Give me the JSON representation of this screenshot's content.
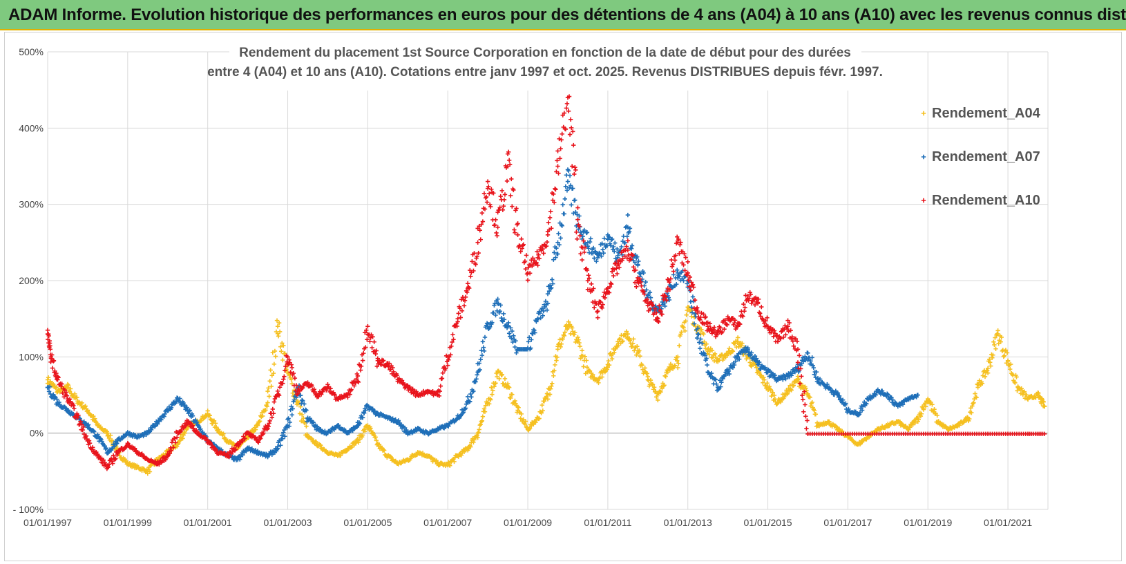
{
  "banner": {
    "title": "ADAM Informe. Evolution historique des performances en euros pour des détentions de 4 ans (A04) à 10 ans (A10) avec les revenus connus distribués"
  },
  "colors": {
    "banner_bg": "#7fc97f",
    "A04": "#f5c021",
    "A07": "#1f6fb8",
    "A10": "#e8141c",
    "grid": "#d9d9d9"
  },
  "chart_data": {
    "type": "scatter",
    "title_lines": [
      "Rendement du placement 1st Source Corporation en fonction de la date de début pour des durées",
      "entre 4 (A04) et 10 ans (A10). Cotations entre janv 1997 et oct. 2025. Revenus DISTRIBUES depuis févr. 1997."
    ],
    "xlabel": "",
    "ylabel": "",
    "x_range": [
      "1997-01-01",
      "2022-01-01"
    ],
    "ylim": [
      -100,
      500
    ],
    "x_ticks": [
      "01/01/1997",
      "01/01/1999",
      "01/01/2001",
      "01/01/2003",
      "01/01/2005",
      "01/01/2007",
      "01/01/2009",
      "01/01/2011",
      "01/01/2013",
      "01/01/2015",
      "01/01/2017",
      "01/01/2019",
      "01/01/2021"
    ],
    "y_ticks": [
      "- 100%",
      "0%",
      "100%",
      "200%",
      "300%",
      "400%",
      "500%"
    ],
    "y_tick_values": [
      -100,
      0,
      100,
      200,
      300,
      400,
      500
    ],
    "grid": true,
    "legend_position": "right",
    "marker": "+",
    "series": [
      {
        "name": "Rendement_A04",
        "points": [
          [
            "1997-01",
            70
          ],
          [
            "1997-04",
            55
          ],
          [
            "1997-07",
            60
          ],
          [
            "1997-10",
            42
          ],
          [
            "1998-01",
            30
          ],
          [
            "1998-04",
            10
          ],
          [
            "1998-07",
            0
          ],
          [
            "1998-10",
            -25
          ],
          [
            "1999-01",
            -40
          ],
          [
            "1999-04",
            -45
          ],
          [
            "1999-07",
            -50
          ],
          [
            "1999-10",
            -35
          ],
          [
            "2000-01",
            -25
          ],
          [
            "2000-04",
            -15
          ],
          [
            "2000-07",
            10
          ],
          [
            "2000-10",
            15
          ],
          [
            "2001-01",
            25
          ],
          [
            "2001-04",
            5
          ],
          [
            "2001-07",
            -10
          ],
          [
            "2001-10",
            -20
          ],
          [
            "2002-01",
            -5
          ],
          [
            "2002-04",
            10
          ],
          [
            "2002-07",
            40
          ],
          [
            "2002-10",
            140
          ],
          [
            "2003-01",
            80
          ],
          [
            "2003-04",
            40
          ],
          [
            "2003-07",
            -5
          ],
          [
            "2003-10",
            -15
          ],
          [
            "2004-01",
            -25
          ],
          [
            "2004-04",
            -30
          ],
          [
            "2004-07",
            -20
          ],
          [
            "2004-10",
            -10
          ],
          [
            "2005-01",
            10
          ],
          [
            "2005-04",
            -15
          ],
          [
            "2005-07",
            -30
          ],
          [
            "2005-10",
            -40
          ],
          [
            "2006-01",
            -35
          ],
          [
            "2006-04",
            -25
          ],
          [
            "2006-07",
            -30
          ],
          [
            "2006-10",
            -40
          ],
          [
            "2007-01",
            -42
          ],
          [
            "2007-04",
            -30
          ],
          [
            "2007-07",
            -20
          ],
          [
            "2007-10",
            0
          ],
          [
            "2008-01",
            40
          ],
          [
            "2008-04",
            80
          ],
          [
            "2008-07",
            60
          ],
          [
            "2008-10",
            30
          ],
          [
            "2009-01",
            5
          ],
          [
            "2009-04",
            20
          ],
          [
            "2009-07",
            50
          ],
          [
            "2009-10",
            110
          ],
          [
            "2010-01",
            140
          ],
          [
            "2010-04",
            120
          ],
          [
            "2010-07",
            80
          ],
          [
            "2010-10",
            70
          ],
          [
            "2011-01",
            90
          ],
          [
            "2011-04",
            120
          ],
          [
            "2011-07",
            130
          ],
          [
            "2011-10",
            105
          ],
          [
            "2012-01",
            70
          ],
          [
            "2012-04",
            50
          ],
          [
            "2012-07",
            80
          ],
          [
            "2012-10",
            100
          ],
          [
            "2013-01",
            165
          ],
          [
            "2013-04",
            140
          ],
          [
            "2013-07",
            110
          ],
          [
            "2013-10",
            95
          ],
          [
            "2014-01",
            105
          ],
          [
            "2014-04",
            120
          ],
          [
            "2014-07",
            100
          ],
          [
            "2014-10",
            80
          ],
          [
            "2015-01",
            60
          ],
          [
            "2015-04",
            40
          ],
          [
            "2015-07",
            55
          ],
          [
            "2015-10",
            70
          ],
          [
            "2016-01",
            50
          ],
          [
            "2016-04",
            10
          ],
          [
            "2016-07",
            15
          ],
          [
            "2016-10",
            5
          ],
          [
            "2017-01",
            -5
          ],
          [
            "2017-04",
            -15
          ],
          [
            "2017-07",
            -5
          ],
          [
            "2017-10",
            5
          ],
          [
            "2018-01",
            10
          ],
          [
            "2018-04",
            15
          ],
          [
            "2018-07",
            5
          ],
          [
            "2018-10",
            20
          ],
          [
            "2019-01",
            45
          ],
          [
            "2019-04",
            15
          ],
          [
            "2019-07",
            5
          ],
          [
            "2019-10",
            10
          ],
          [
            "2020-01",
            20
          ],
          [
            "2020-04",
            60
          ],
          [
            "2020-07",
            85
          ],
          [
            "2020-10",
            130
          ],
          [
            "2021-01",
            95
          ],
          [
            "2021-04",
            60
          ],
          [
            "2021-07",
            45
          ],
          [
            "2021-10",
            50
          ],
          [
            "2021-12",
            35
          ]
        ]
      },
      {
        "name": "Rendement_A07",
        "points": [
          [
            "1997-01",
            60
          ],
          [
            "1997-04",
            40
          ],
          [
            "1997-07",
            30
          ],
          [
            "1997-10",
            20
          ],
          [
            "1998-01",
            10
          ],
          [
            "1998-04",
            -5
          ],
          [
            "1998-07",
            -25
          ],
          [
            "1998-10",
            -10
          ],
          [
            "1999-01",
            0
          ],
          [
            "1999-04",
            -5
          ],
          [
            "1999-07",
            0
          ],
          [
            "1999-10",
            15
          ],
          [
            "2000-01",
            30
          ],
          [
            "2000-04",
            45
          ],
          [
            "2000-07",
            30
          ],
          [
            "2000-10",
            10
          ],
          [
            "2001-01",
            -10
          ],
          [
            "2001-04",
            -20
          ],
          [
            "2001-07",
            -30
          ],
          [
            "2001-10",
            -35
          ],
          [
            "2002-01",
            -20
          ],
          [
            "2002-04",
            -25
          ],
          [
            "2002-07",
            -30
          ],
          [
            "2002-10",
            -20
          ],
          [
            "2003-01",
            10
          ],
          [
            "2003-04",
            60
          ],
          [
            "2003-07",
            20
          ],
          [
            "2003-10",
            5
          ],
          [
            "2004-01",
            0
          ],
          [
            "2004-04",
            10
          ],
          [
            "2004-07",
            0
          ],
          [
            "2004-10",
            10
          ],
          [
            "2005-01",
            35
          ],
          [
            "2005-04",
            25
          ],
          [
            "2005-07",
            20
          ],
          [
            "2005-10",
            15
          ],
          [
            "2006-01",
            0
          ],
          [
            "2006-04",
            5
          ],
          [
            "2006-07",
            0
          ],
          [
            "2006-10",
            5
          ],
          [
            "2007-01",
            10
          ],
          [
            "2007-04",
            20
          ],
          [
            "2007-07",
            40
          ],
          [
            "2007-10",
            80
          ],
          [
            "2008-01",
            140
          ],
          [
            "2008-04",
            170
          ],
          [
            "2008-07",
            140
          ],
          [
            "2008-10",
            110
          ],
          [
            "2009-01",
            110
          ],
          [
            "2009-04",
            150
          ],
          [
            "2009-07",
            170
          ],
          [
            "2009-10",
            250
          ],
          [
            "2010-01",
            330
          ],
          [
            "2010-04",
            280
          ],
          [
            "2010-07",
            250
          ],
          [
            "2010-10",
            230
          ],
          [
            "2011-01",
            260
          ],
          [
            "2011-04",
            230
          ],
          [
            "2011-07",
            270
          ],
          [
            "2011-10",
            220
          ],
          [
            "2012-01",
            180
          ],
          [
            "2012-04",
            160
          ],
          [
            "2012-07",
            180
          ],
          [
            "2012-10",
            210
          ],
          [
            "2013-01",
            200
          ],
          [
            "2013-04",
            130
          ],
          [
            "2013-07",
            80
          ],
          [
            "2013-10",
            60
          ],
          [
            "2014-01",
            80
          ],
          [
            "2014-04",
            100
          ],
          [
            "2014-07",
            110
          ],
          [
            "2014-10",
            90
          ],
          [
            "2015-01",
            80
          ],
          [
            "2015-04",
            70
          ],
          [
            "2015-07",
            75
          ],
          [
            "2015-10",
            85
          ],
          [
            "2016-01",
            105
          ],
          [
            "2016-04",
            70
          ],
          [
            "2016-07",
            60
          ],
          [
            "2016-10",
            50
          ],
          [
            "2017-01",
            30
          ],
          [
            "2017-04",
            25
          ],
          [
            "2017-07",
            45
          ],
          [
            "2017-10",
            55
          ],
          [
            "2018-01",
            50
          ],
          [
            "2018-04",
            35
          ],
          [
            "2018-07",
            45
          ],
          [
            "2018-10",
            50
          ]
        ]
      },
      {
        "name": "Rendement_A10",
        "points": [
          [
            "1997-01",
            130
          ],
          [
            "1997-02",
            100
          ],
          [
            "1997-04",
            70
          ],
          [
            "1997-07",
            45
          ],
          [
            "1997-10",
            20
          ],
          [
            "1998-01",
            -10
          ],
          [
            "1998-04",
            -30
          ],
          [
            "1998-07",
            -45
          ],
          [
            "1998-10",
            -25
          ],
          [
            "1999-01",
            -15
          ],
          [
            "1999-04",
            -25
          ],
          [
            "1999-07",
            -35
          ],
          [
            "1999-10",
            -40
          ],
          [
            "2000-01",
            -30
          ],
          [
            "2000-04",
            0
          ],
          [
            "2000-07",
            15
          ],
          [
            "2000-10",
            0
          ],
          [
            "2001-01",
            -10
          ],
          [
            "2001-04",
            -25
          ],
          [
            "2001-07",
            -30
          ],
          [
            "2001-10",
            -15
          ],
          [
            "2002-01",
            0
          ],
          [
            "2002-04",
            -10
          ],
          [
            "2002-07",
            10
          ],
          [
            "2002-10",
            50
          ],
          [
            "2003-01",
            100
          ],
          [
            "2003-04",
            55
          ],
          [
            "2003-07",
            65
          ],
          [
            "2003-10",
            50
          ],
          [
            "2004-01",
            60
          ],
          [
            "2004-04",
            45
          ],
          [
            "2004-07",
            50
          ],
          [
            "2004-10",
            75
          ],
          [
            "2005-01",
            140
          ],
          [
            "2005-04",
            95
          ],
          [
            "2005-07",
            90
          ],
          [
            "2005-10",
            70
          ],
          [
            "2006-01",
            60
          ],
          [
            "2006-04",
            50
          ],
          [
            "2006-07",
            55
          ],
          [
            "2006-10",
            50
          ],
          [
            "2007-01",
            100
          ],
          [
            "2007-04",
            150
          ],
          [
            "2007-07",
            190
          ],
          [
            "2007-10",
            250
          ],
          [
            "2008-01",
            330
          ],
          [
            "2008-04",
            270
          ],
          [
            "2008-07",
            350
          ],
          [
            "2008-10",
            260
          ],
          [
            "2009-01",
            210
          ],
          [
            "2009-04",
            230
          ],
          [
            "2009-07",
            260
          ],
          [
            "2009-10",
            350
          ],
          [
            "2010-01",
            440
          ],
          [
            "2010-04",
            280
          ],
          [
            "2010-07",
            200
          ],
          [
            "2010-10",
            160
          ],
          [
            "2011-01",
            190
          ],
          [
            "2011-04",
            220
          ],
          [
            "2011-07",
            240
          ],
          [
            "2011-10",
            200
          ],
          [
            "2012-01",
            170
          ],
          [
            "2012-04",
            150
          ],
          [
            "2012-07",
            190
          ],
          [
            "2012-10",
            250
          ],
          [
            "2013-01",
            210
          ],
          [
            "2013-04",
            160
          ],
          [
            "2013-07",
            140
          ],
          [
            "2013-10",
            130
          ],
          [
            "2014-01",
            150
          ],
          [
            "2014-04",
            140
          ],
          [
            "2014-07",
            180
          ],
          [
            "2014-10",
            170
          ],
          [
            "2015-01",
            140
          ],
          [
            "2015-04",
            120
          ],
          [
            "2015-07",
            140
          ],
          [
            "2015-10",
            110
          ],
          [
            "2016-01",
            -1
          ],
          [
            "2016-07",
            -1
          ],
          [
            "2017-01",
            -1
          ],
          [
            "2017-07",
            -1
          ],
          [
            "2018-01",
            -1
          ],
          [
            "2018-07",
            -1
          ],
          [
            "2019-01",
            -1
          ],
          [
            "2019-07",
            -1
          ],
          [
            "2020-01",
            -1
          ],
          [
            "2020-07",
            -1
          ],
          [
            "2021-01",
            -1
          ],
          [
            "2021-07",
            -1
          ],
          [
            "2021-12",
            -1
          ]
        ]
      }
    ]
  }
}
